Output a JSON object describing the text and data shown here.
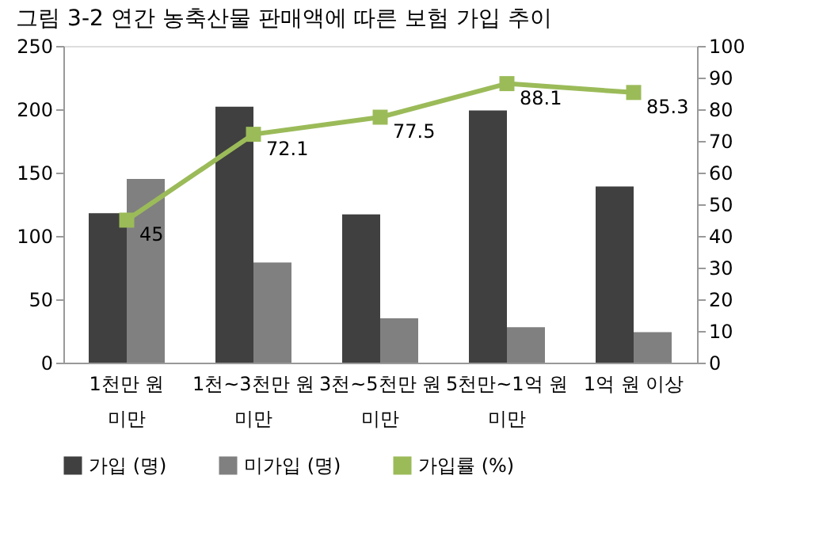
{
  "chart_data": {
    "type": "bar",
    "title": "그림 3-2  연간 농축산물 판매액에 따른 보험 가입 추이",
    "categories": [
      "1천만 원\n미만",
      "1천~3천만 원\n미만",
      "3천~5천만 원\n미만",
      "5천만~1억 원\n미만",
      "1억 원 이상"
    ],
    "series": [
      {
        "name": "가입 (명)",
        "color": "#404040",
        "values": [
          118,
          202,
          117,
          199,
          139
        ]
      },
      {
        "name": "미가입 (명)",
        "color": "#808080",
        "values": [
          145,
          79,
          35,
          28,
          24
        ]
      },
      {
        "name": "가입률 (%)",
        "type": "line",
        "axis": "y2",
        "color": "#9bbb59",
        "marker": "square",
        "values": [
          45,
          72.1,
          77.5,
          88.1,
          85.3
        ],
        "value_labels": [
          "45",
          "72.1",
          "77.5",
          "88.1",
          "85.3"
        ]
      }
    ],
    "ylim": [
      0,
      250
    ],
    "yticks": [
      0,
      50,
      100,
      150,
      200,
      250
    ],
    "y2lim": [
      0,
      100
    ],
    "y2ticks": [
      0,
      10,
      20,
      30,
      40,
      50,
      60,
      70,
      80,
      90,
      100
    ],
    "grid": false,
    "legend": "bottom"
  }
}
